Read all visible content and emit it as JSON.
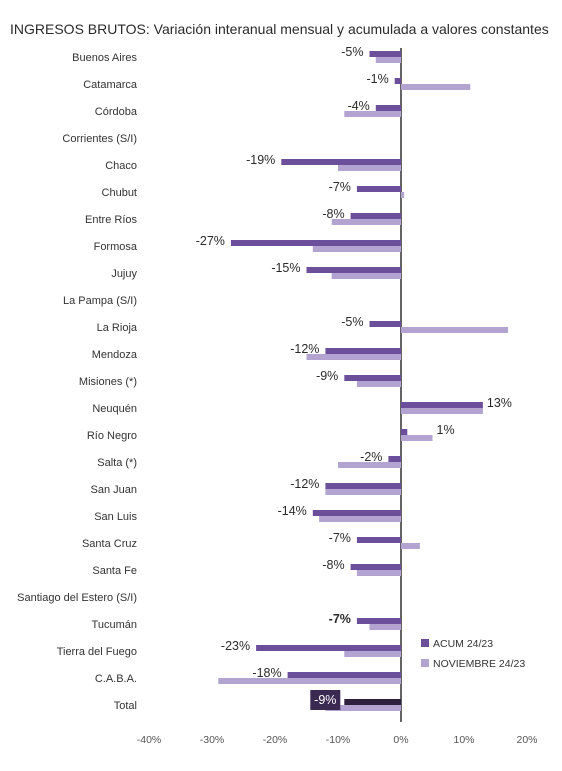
{
  "chart_data": {
    "type": "bar",
    "orientation": "horizontal",
    "title": "INGRESOS BRUTOS: Variación interanual mensual y acumulada a valores constantes",
    "categories": [
      "Buenos Aires",
      "Catamarca",
      "Córdoba",
      "Corrientes (S/I)",
      "Chaco",
      "Chubut",
      "Entre Ríos",
      "Formosa",
      "Jujuy",
      "La Pampa (S/I)",
      "La Rioja",
      "Mendoza",
      "Misiones (*)",
      "Neuquén",
      "Río Negro",
      "Salta (*)",
      "San Juan",
      "San Luis",
      "Santa Cruz",
      "Santa Fe",
      "Santiago del Estero (S/I)",
      "Tucumán",
      "Tierra del Fuego",
      "C.A.B.A.",
      "Total"
    ],
    "series": [
      {
        "name": "ACUM 24/23",
        "color": "#6b4f9a",
        "values": [
          -5,
          -1,
          -4,
          null,
          -19,
          -7,
          -8,
          -27,
          -15,
          null,
          -5,
          -12,
          -9,
          13,
          1,
          -2,
          -12,
          -14,
          -7,
          -8,
          null,
          -7,
          -23,
          -18,
          -9
        ]
      },
      {
        "name": "NOVIEMBRE 24/23",
        "color": "#b3a3d1",
        "values": [
          -4,
          11,
          -9,
          null,
          -10,
          0.5,
          -11,
          -14,
          -11,
          null,
          17,
          -15,
          -7,
          13,
          5,
          -10,
          -12,
          -13,
          3,
          -7,
          null,
          -5,
          -9,
          -29,
          -12
        ]
      }
    ],
    "data_labels": [
      "-5%",
      "-1%",
      "-4%",
      "",
      "-19%",
      "-7%",
      "-8%",
      "-27%",
      "-15%",
      "",
      "-5%",
      "-12%",
      "-9%",
      "13%",
      "1%",
      "-2%",
      "-12%",
      "-14%",
      "-7%",
      "-8%",
      "",
      "-7%",
      "-23%",
      "-18%",
      "-9%"
    ],
    "x_ticks": [
      "-40%",
      "-30%",
      "-20%",
      "-10%",
      "0%",
      "10%",
      "20%"
    ],
    "xlim": [
      -40,
      20
    ],
    "highlight": {
      "category": "Total",
      "acum_color": "#2e2140",
      "label_bg": "#3a2a52",
      "label_color": "#ffffff"
    },
    "legend_position": "bottom-right",
    "grid": false
  }
}
